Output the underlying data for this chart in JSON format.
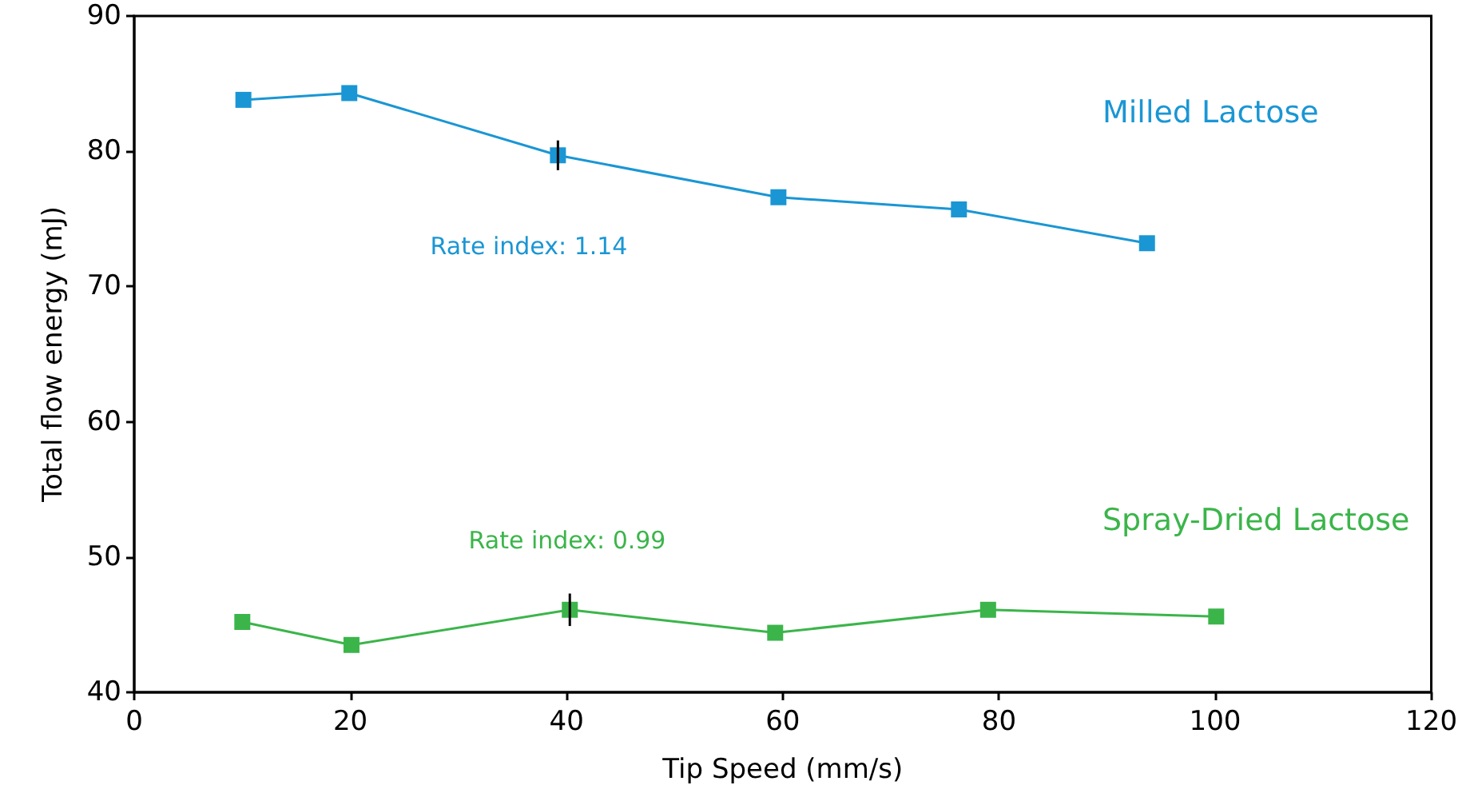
{
  "chart_data": {
    "type": "line",
    "xlabel": "Tip Speed (mm/s)",
    "ylabel": "Total flow energy (mJ)",
    "xlim": [
      0,
      120
    ],
    "xticks": [
      0,
      20,
      40,
      60,
      80,
      100,
      120
    ],
    "ylim": [
      40,
      90
    ],
    "yticks": [
      40,
      50,
      60,
      70,
      80,
      90
    ],
    "grid": false,
    "legend": false,
    "marker": "square",
    "line_style": "solid",
    "series": [
      {
        "name": "Milled Lactose",
        "color": "#1a96d4",
        "x": [
          10.1,
          19.9,
          39.2,
          59.6,
          76.3,
          93.7
        ],
        "values": [
          83.8,
          84.3,
          79.7,
          76.6,
          75.7,
          73.2
        ],
        "errors": [
          null,
          null,
          1.1,
          null,
          null,
          null
        ]
      },
      {
        "name": "Spray-Dried Lactose",
        "color": "#3bb54a",
        "x": [
          10,
          20.1,
          40.3,
          59.3,
          79,
          100.1
        ],
        "values": [
          45.2,
          43.5,
          46.1,
          44.4,
          46.1,
          45.6
        ],
        "errors": [
          null,
          null,
          1.2,
          null,
          null,
          null
        ]
      }
    ],
    "annotations": [
      "Rate index: 1.14",
      "Rate index: 0.99"
    ]
  }
}
